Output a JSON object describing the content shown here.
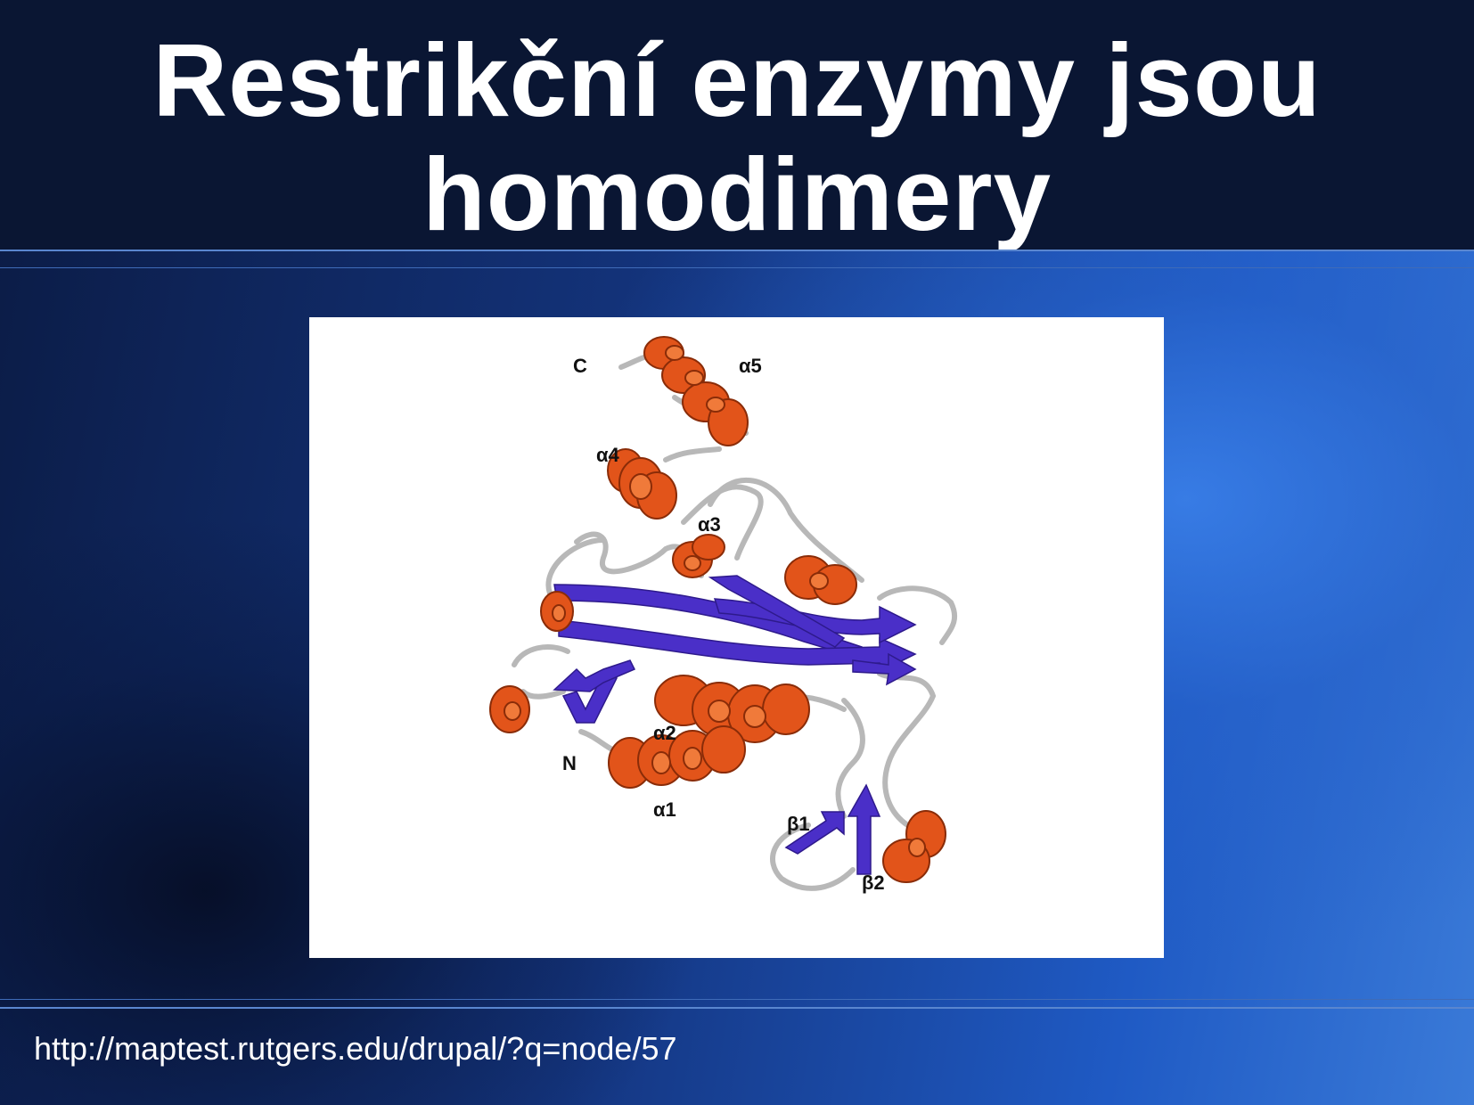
{
  "slide": {
    "title_line1": "Restrikční enzymy jsou",
    "title_line2": "homodimery",
    "source_url": "http://maptest.rutgers.edu/drupal/?q=node/57"
  },
  "figure": {
    "labels": {
      "c": "C",
      "n": "N",
      "a1": "α1",
      "a2": "α2",
      "a3": "α3",
      "a4": "α4",
      "a5": "α5",
      "b1": "β1",
      "b2": "β2"
    },
    "colors": {
      "helix": "#e2541a",
      "sheet": "#4a2fc8",
      "loop": "#b5b5b5"
    }
  }
}
